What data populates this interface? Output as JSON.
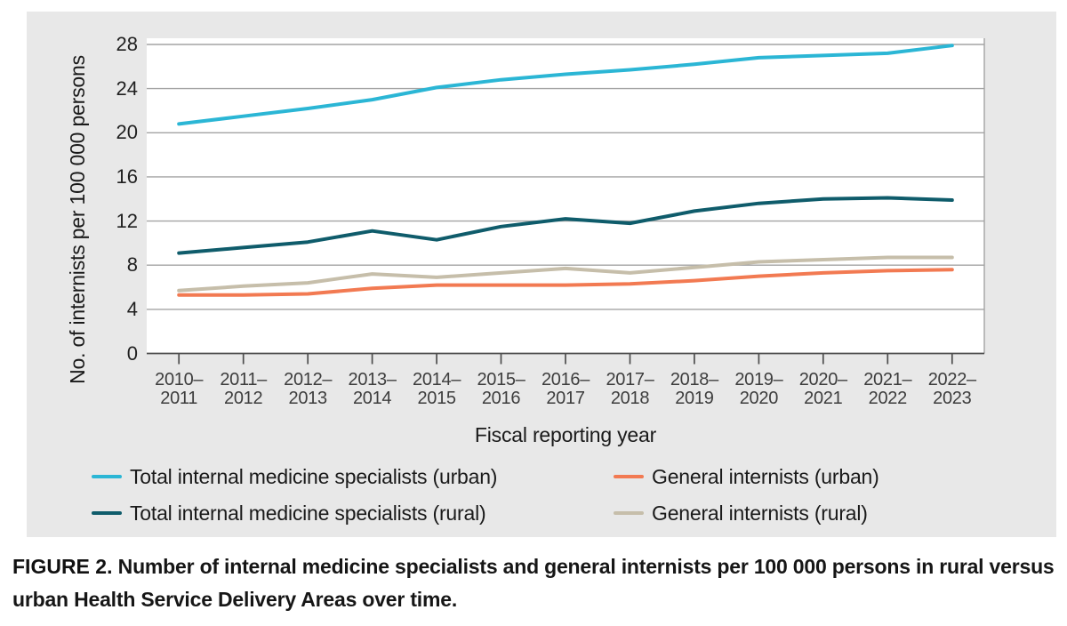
{
  "chart_data": {
    "type": "line",
    "title": "",
    "xlabel": "Fiscal reporting year",
    "ylabel": "No. of internists per 100 000 persons",
    "ylim": [
      0,
      28
    ],
    "yticks": [
      0,
      4,
      8,
      12,
      16,
      20,
      24,
      28
    ],
    "grid": true,
    "legend_position": "bottom",
    "categories": [
      "2010–2011",
      "2011–2012",
      "2012–2013",
      "2013–2014",
      "2014–2015",
      "2015–2016",
      "2016–2017",
      "2017–2018",
      "2018–2019",
      "2019–2020",
      "2020–2021",
      "2021–2022",
      "2022–2023"
    ],
    "series": [
      {
        "name": "Total internal medicine specialists (urban)",
        "color": "#2bb6d5",
        "values": [
          20.8,
          21.5,
          22.2,
          23.0,
          24.1,
          24.8,
          25.3,
          25.7,
          26.2,
          26.8,
          27.0,
          27.2,
          27.9
        ]
      },
      {
        "name": "Total internal medicine specialists (rural)",
        "color": "#0f5c6b",
        "values": [
          9.1,
          9.6,
          10.1,
          11.1,
          10.3,
          11.5,
          12.2,
          11.8,
          12.9,
          13.6,
          14.0,
          14.1,
          13.9
        ]
      },
      {
        "name": "General internists (urban)",
        "color": "#f27a52",
        "values": [
          5.3,
          5.3,
          5.4,
          5.9,
          6.2,
          6.2,
          6.2,
          6.3,
          6.6,
          7.0,
          7.3,
          7.5,
          7.6
        ]
      },
      {
        "name": "General internists (rural)",
        "color": "#c6beaa",
        "values": [
          5.7,
          6.1,
          6.4,
          7.2,
          6.9,
          7.3,
          7.7,
          7.3,
          7.8,
          8.3,
          8.5,
          8.7,
          8.7
        ]
      }
    ]
  },
  "colors": {
    "panel_background": "#e8e8e8",
    "plot_background": "#ffffff",
    "gridline": "#a3a3a3",
    "axis_line": "#4d4d4d"
  },
  "caption": {
    "label": "FIGURE 2.",
    "text": "Number of internal medicine specialists and general internists per 100 000 persons in rural versus urban Health Service Delivery Areas over time."
  }
}
